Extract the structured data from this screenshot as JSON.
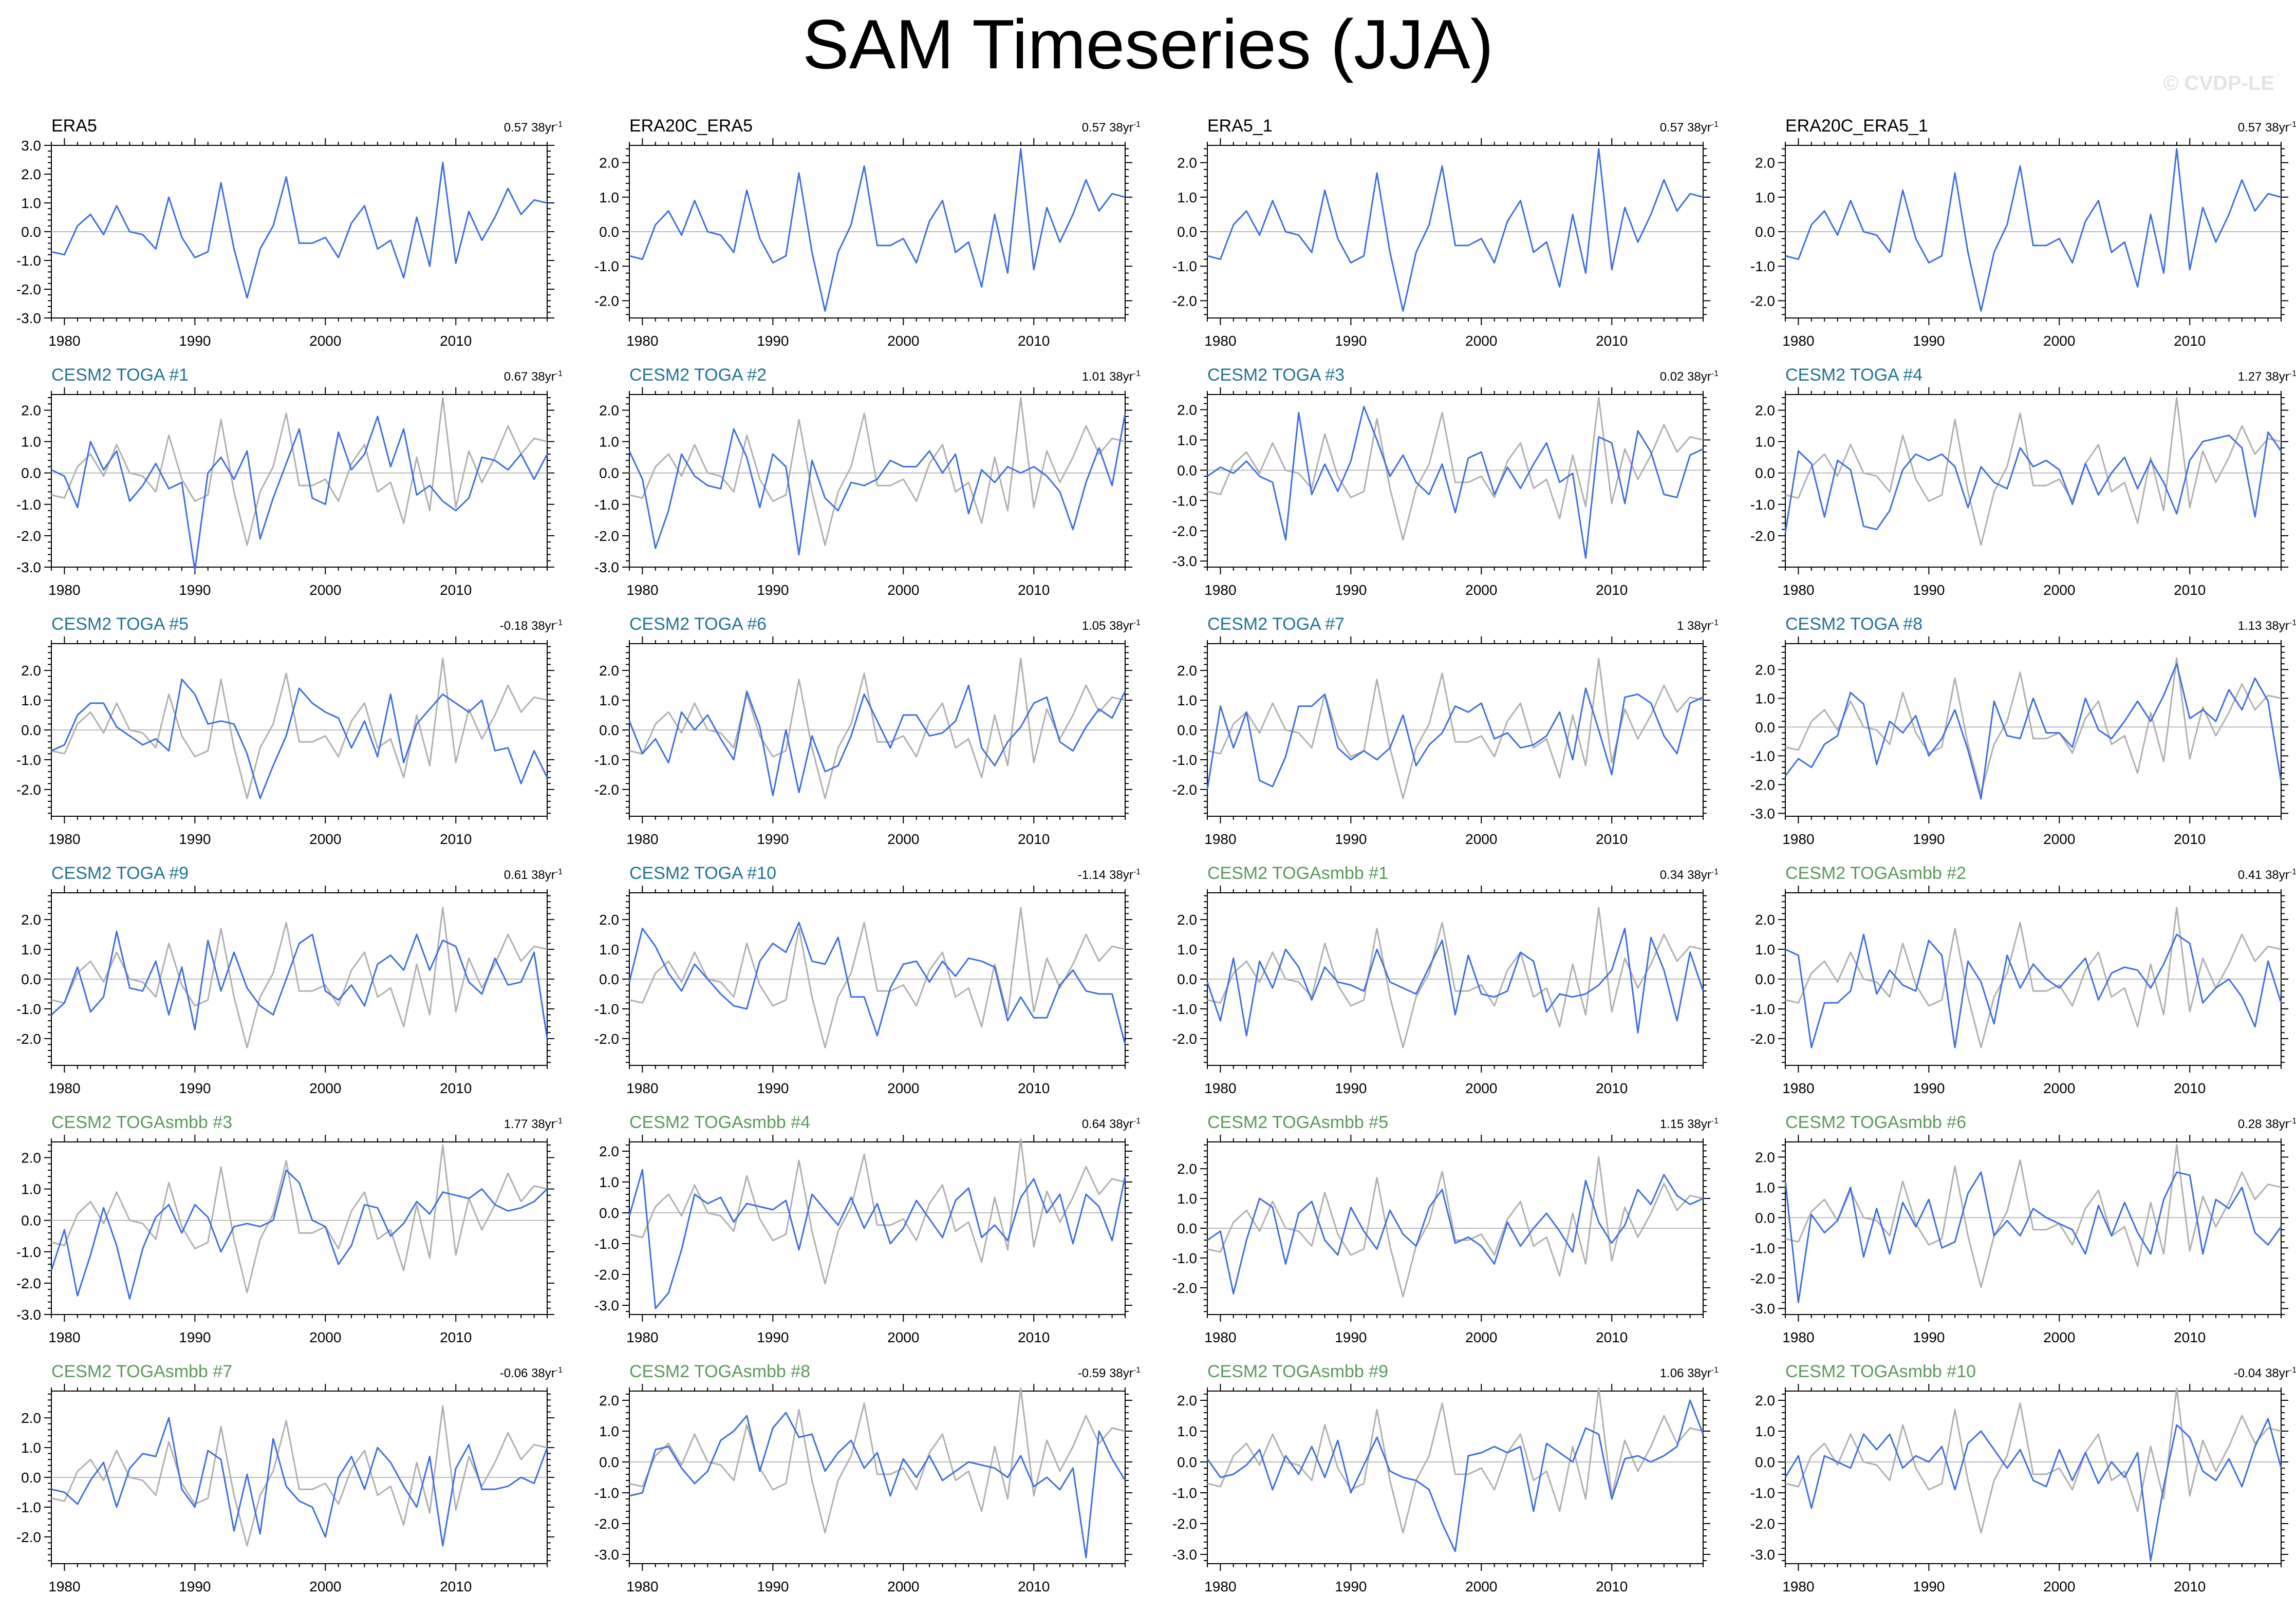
{
  "title": "SAM Timeseries (JJA)",
  "copyright": "© CVDP-LE",
  "colors": {
    "obs_line": "#b0b0b0",
    "sim_line": "#3e6fe0",
    "zero_line": "#bbbbbb",
    "obs_title": "#000000",
    "toga_title": "#1f7494",
    "smbb_title": "#5a9a5a"
  },
  "chart_data": {
    "type": "line",
    "x_start": 1979,
    "x_end": 2017,
    "x_ticks": [
      "1980",
      "1990",
      "2000",
      "2010"
    ],
    "trend_unit": "38yr",
    "trend_exponent": "-1",
    "observed_series": [
      -0.7,
      -0.8,
      0.2,
      0.6,
      -0.1,
      0.9,
      0.0,
      -0.1,
      -0.6,
      1.2,
      -0.2,
      -0.9,
      -0.7,
      1.7,
      -0.6,
      -2.3,
      -0.6,
      0.2,
      1.9,
      -0.4,
      -0.4,
      -0.2,
      -0.9,
      0.3,
      0.9,
      -0.6,
      -0.3,
      -1.6,
      0.5,
      -1.2,
      2.4,
      -1.1,
      0.7,
      -0.3,
      0.5,
      1.5,
      0.6,
      1.1,
      1.0
    ],
    "panels": [
      {
        "title": "ERA5",
        "group": "obs",
        "trend": "0.57",
        "ylim": [
          -3,
          3
        ],
        "yticks": [
          3,
          2,
          1,
          0,
          -1,
          -2,
          -3
        ],
        "sim": null
      },
      {
        "title": "ERA20C_ERA5",
        "group": "obs",
        "trend": "0.57",
        "ylim": [
          -2.5,
          2.5
        ],
        "yticks": [
          2,
          1,
          0,
          -1,
          -2
        ],
        "sim": null
      },
      {
        "title": "ERA5_1",
        "group": "obs",
        "trend": "0.57",
        "ylim": [
          -2.5,
          2.5
        ],
        "yticks": [
          2,
          1,
          0,
          -1,
          -2
        ],
        "sim": null
      },
      {
        "title": "ERA20C_ERA5_1",
        "group": "obs",
        "trend": "0.57",
        "ylim": [
          -2.5,
          2.5
        ],
        "yticks": [
          2,
          1,
          0,
          -1,
          -2
        ],
        "sim": null
      },
      {
        "title": "CESM2 TOGA #1",
        "group": "toga",
        "trend": "0.67",
        "ylim": [
          -3,
          2.5
        ],
        "yticks": [
          2,
          1,
          0,
          -1,
          -2,
          -3
        ],
        "sim": [
          0.1,
          -0.1,
          -1.1,
          1.0,
          0.1,
          0.7,
          -0.9,
          -0.4,
          0.3,
          -0.5,
          -0.3,
          -3.1,
          0.0,
          0.5,
          -0.2,
          0.7,
          -2.1,
          -0.8,
          0.3,
          1.4,
          -0.8,
          -1.0,
          1.3,
          0.1,
          0.6,
          1.8,
          0.2,
          1.4,
          -0.7,
          -0.4,
          -0.9,
          -1.2,
          -0.8,
          0.5,
          0.4,
          0.1,
          0.6,
          -0.2,
          0.6
        ]
      },
      {
        "title": "CESM2 TOGA #2",
        "group": "toga",
        "trend": "1.01",
        "ylim": [
          -3,
          2.5
        ],
        "yticks": [
          2,
          1,
          0,
          -1,
          -2,
          -3
        ],
        "sim": [
          0.7,
          -0.2,
          -2.4,
          -1.2,
          0.6,
          -0.1,
          -0.4,
          -0.5,
          1.4,
          0.5,
          -1.1,
          0.6,
          0.2,
          -2.6,
          0.4,
          -0.8,
          -1.2,
          -0.3,
          -0.4,
          -0.2,
          0.4,
          0.2,
          0.2,
          0.7,
          0.0,
          0.6,
          -1.3,
          0.1,
          -0.3,
          0.2,
          0.0,
          0.2,
          -0.1,
          -0.6,
          -1.8,
          -0.3,
          0.8,
          -0.4,
          1.9
        ]
      },
      {
        "title": "CESM2 TOGA #3",
        "group": "toga",
        "trend": "0.02",
        "ylim": [
          -3.2,
          2.5
        ],
        "yticks": [
          2,
          1,
          0,
          -1,
          -2,
          -3
        ],
        "sim": [
          -0.2,
          0.1,
          -0.1,
          0.3,
          -0.2,
          -0.4,
          -2.3,
          1.9,
          -0.8,
          0.2,
          -0.7,
          0.3,
          2.1,
          1.0,
          -0.2,
          0.5,
          -0.4,
          -0.8,
          0.2,
          -1.4,
          0.4,
          0.6,
          -0.8,
          0.1,
          -0.6,
          0.2,
          0.9,
          -0.4,
          -0.1,
          -2.9,
          1.1,
          0.9,
          -1.1,
          1.3,
          0.6,
          -0.8,
          -0.9,
          0.5,
          0.7
        ]
      },
      {
        "title": "CESM2 TOGA #4",
        "group": "toga",
        "trend": "1.27",
        "ylim": [
          -3,
          2.5
        ],
        "yticks": [
          2,
          1,
          0,
          -1,
          -2
        ],
        "sim": [
          -1.9,
          0.7,
          0.3,
          -1.4,
          0.4,
          0.1,
          -1.7,
          -1.8,
          -1.2,
          0.1,
          0.6,
          0.4,
          0.6,
          0.2,
          -1.1,
          0.2,
          -0.3,
          -0.5,
          0.8,
          0.2,
          0.4,
          0.1,
          -1.0,
          0.3,
          -0.7,
          0.0,
          0.5,
          -0.5,
          0.4,
          -0.3,
          -1.3,
          0.4,
          1.0,
          1.1,
          1.2,
          0.8,
          -1.4,
          1.3,
          0.7
        ]
      },
      {
        "title": "CESM2 TOGA #5",
        "group": "toga",
        "trend": "-0.18",
        "ylim": [
          -2.9,
          2.9
        ],
        "yticks": [
          2,
          1,
          0,
          -1,
          -2
        ],
        "sim": [
          -0.7,
          -0.5,
          0.5,
          0.9,
          0.9,
          0.1,
          -0.2,
          -0.5,
          -0.3,
          -0.7,
          1.7,
          1.2,
          0.2,
          0.3,
          0.2,
          -0.8,
          -2.3,
          -1.2,
          -0.2,
          1.4,
          0.9,
          0.6,
          0.4,
          -0.6,
          0.3,
          -0.9,
          1.2,
          -1.1,
          0.2,
          0.7,
          1.2,
          0.9,
          0.6,
          1.0,
          -0.7,
          -0.6,
          -1.8,
          -0.7,
          -1.6
        ]
      },
      {
        "title": "CESM2 TOGA #6",
        "group": "toga",
        "trend": "1.05",
        "ylim": [
          -2.9,
          2.9
        ],
        "yticks": [
          2,
          1,
          0,
          -1,
          -2
        ],
        "sim": [
          0.3,
          -0.8,
          -0.3,
          -1.1,
          0.6,
          0.0,
          0.5,
          -0.3,
          -1.0,
          1.3,
          0.1,
          -2.2,
          0.0,
          -2.1,
          -0.2,
          -1.4,
          -1.2,
          -0.2,
          1.2,
          0.3,
          -0.6,
          0.5,
          0.5,
          -0.2,
          -0.1,
          0.3,
          1.5,
          -0.6,
          -1.2,
          -0.4,
          0.1,
          0.9,
          1.1,
          -0.4,
          -0.7,
          0.1,
          0.7,
          0.4,
          1.3
        ]
      },
      {
        "title": "CESM2 TOGA #7",
        "group": "toga",
        "trend": "1",
        "ylim": [
          -2.9,
          2.9
        ],
        "yticks": [
          2,
          1,
          0,
          -1,
          -2
        ],
        "sim": [
          -2.0,
          0.8,
          -0.6,
          0.6,
          -1.7,
          -1.9,
          -0.9,
          0.8,
          0.8,
          1.2,
          -0.6,
          -1.0,
          -0.7,
          -1.0,
          -0.6,
          0.5,
          -1.2,
          -0.5,
          -0.1,
          0.8,
          0.6,
          0.9,
          -0.3,
          -0.1,
          -0.6,
          -0.5,
          -0.2,
          0.6,
          -1.0,
          1.4,
          0.0,
          -1.5,
          1.1,
          1.2,
          0.9,
          -0.2,
          -0.8,
          0.9,
          1.1
        ]
      },
      {
        "title": "CESM2 TOGA #8",
        "group": "toga",
        "trend": "1.13",
        "ylim": [
          -3.1,
          2.9
        ],
        "yticks": [
          2,
          1,
          0,
          -1,
          -2,
          -3
        ],
        "sim": [
          -1.7,
          -1.1,
          -1.4,
          -0.6,
          -0.3,
          1.2,
          0.8,
          -1.3,
          0.2,
          -0.2,
          0.4,
          -1.0,
          -0.4,
          0.6,
          -0.8,
          -2.5,
          0.9,
          -0.3,
          -0.4,
          1.0,
          -0.2,
          -0.2,
          -0.7,
          1.0,
          -0.1,
          -0.4,
          0.2,
          0.9,
          0.2,
          1.1,
          2.2,
          0.3,
          0.6,
          0.2,
          1.3,
          0.6,
          1.7,
          0.9,
          -1.9
        ]
      },
      {
        "title": "CESM2 TOGA #9",
        "group": "toga",
        "trend": "0.61",
        "ylim": [
          -2.9,
          2.9
        ],
        "yticks": [
          2,
          1,
          0,
          -1,
          -2
        ],
        "sim": [
          -1.2,
          -0.8,
          0.4,
          -1.1,
          -0.6,
          1.6,
          -0.3,
          -0.4,
          0.6,
          -1.2,
          0.4,
          -1.7,
          1.3,
          -0.4,
          0.9,
          -0.3,
          -0.9,
          -1.2,
          0.0,
          1.2,
          1.5,
          -0.4,
          -0.7,
          -0.2,
          -0.9,
          0.5,
          0.8,
          0.3,
          1.5,
          0.3,
          1.3,
          1.1,
          -0.1,
          -0.5,
          0.7,
          -0.2,
          -0.1,
          0.9,
          -2.0
        ]
      },
      {
        "title": "CESM2 TOGA #10",
        "group": "toga",
        "trend": "-1.14",
        "ylim": [
          -2.9,
          2.9
        ],
        "yticks": [
          2,
          1,
          0,
          -1,
          -2
        ],
        "sim": [
          -0.1,
          1.7,
          1.1,
          0.2,
          -0.4,
          0.5,
          0.0,
          -0.5,
          -0.9,
          -1.0,
          0.6,
          1.2,
          0.9,
          1.9,
          0.6,
          0.5,
          1.4,
          -0.6,
          -0.6,
          -1.9,
          -0.3,
          0.5,
          0.6,
          -0.1,
          0.6,
          0.1,
          0.7,
          0.6,
          0.4,
          -1.4,
          -0.6,
          -1.3,
          -1.3,
          -0.2,
          0.3,
          -0.4,
          -0.5,
          -0.5,
          -2.2
        ]
      },
      {
        "title": "CESM2 TOGAsmbb #1",
        "group": "smbb",
        "trend": "0.34",
        "ylim": [
          -2.9,
          2.9
        ],
        "yticks": [
          2,
          1,
          0,
          -1,
          -2
        ],
        "sim": [
          -0.1,
          -1.4,
          0.7,
          -1.9,
          0.6,
          -0.3,
          1.0,
          0.4,
          -0.7,
          0.4,
          -0.1,
          -0.2,
          -0.4,
          1.0,
          -0.1,
          -0.3,
          -0.5,
          0.4,
          1.3,
          -1.2,
          0.8,
          -0.5,
          -0.6,
          -0.4,
          0.9,
          0.6,
          -1.1,
          -0.5,
          -0.6,
          -0.5,
          -0.2,
          0.3,
          1.7,
          -1.8,
          1.4,
          0.3,
          -1.4,
          0.9,
          -0.4
        ]
      },
      {
        "title": "CESM2 TOGAsmbb #2",
        "group": "smbb",
        "trend": "0.41",
        "ylim": [
          -2.9,
          2.9
        ],
        "yticks": [
          2,
          1,
          0,
          -1,
          -2
        ],
        "sim": [
          1.0,
          0.8,
          -2.3,
          -0.8,
          -0.8,
          -0.4,
          1.5,
          -0.5,
          0.3,
          -0.2,
          -0.4,
          1.3,
          0.8,
          -2.3,
          0.6,
          -0.1,
          -1.5,
          0.8,
          -0.3,
          0.5,
          0.0,
          -0.3,
          0.2,
          0.7,
          -0.7,
          0.2,
          0.4,
          0.3,
          -0.3,
          0.5,
          1.5,
          1.2,
          -0.8,
          -0.3,
          0.0,
          -0.6,
          -1.6,
          0.6,
          -0.8
        ]
      },
      {
        "title": "CESM2 TOGAsmbb #3",
        "group": "smbb",
        "trend": "1.77",
        "ylim": [
          -3,
          2.5
        ],
        "yticks": [
          2,
          1,
          0,
          -1,
          -2,
          -3
        ],
        "sim": [
          -1.6,
          -0.3,
          -2.4,
          -1.1,
          0.4,
          -0.8,
          -2.5,
          -0.9,
          0.1,
          0.5,
          -0.4,
          0.5,
          0.1,
          -1.0,
          -0.2,
          -0.1,
          -0.2,
          0.0,
          1.6,
          1.2,
          0.0,
          -0.2,
          -1.4,
          -0.8,
          0.5,
          0.4,
          -0.5,
          -0.1,
          0.6,
          0.2,
          0.9,
          0.8,
          0.7,
          1.0,
          0.5,
          0.3,
          0.4,
          0.6,
          1.0
        ]
      },
      {
        "title": "CESM2 TOGAsmbb #4",
        "group": "smbb",
        "trend": "0.64",
        "ylim": [
          -3.3,
          2.3
        ],
        "yticks": [
          2,
          1,
          0,
          -1,
          -2,
          -3
        ],
        "sim": [
          -0.1,
          1.4,
          -3.1,
          -2.6,
          -1.2,
          0.6,
          0.3,
          0.5,
          -0.3,
          0.3,
          0.2,
          0.1,
          0.4,
          -1.2,
          0.6,
          0.1,
          -0.4,
          0.5,
          -0.5,
          0.3,
          -1.0,
          -0.5,
          0.4,
          -0.2,
          -0.8,
          0.4,
          0.8,
          -0.8,
          -0.4,
          -0.9,
          0.5,
          1.1,
          0.0,
          0.6,
          -1.0,
          0.6,
          0.2,
          -0.9,
          1.2
        ]
      },
      {
        "title": "CESM2 TOGAsmbb #5",
        "group": "smbb",
        "trend": "1.15",
        "ylim": [
          -2.9,
          2.9
        ],
        "yticks": [
          2,
          1,
          0,
          -1,
          -2
        ],
        "sim": [
          -0.4,
          -0.1,
          -2.2,
          -0.4,
          1.0,
          0.7,
          -1.2,
          0.5,
          0.9,
          -0.4,
          -0.9,
          0.7,
          -0.1,
          -0.7,
          0.6,
          -0.2,
          -0.6,
          0.7,
          1.3,
          -0.5,
          -0.3,
          -0.6,
          -1.2,
          0.2,
          -0.6,
          0.0,
          0.5,
          -0.1,
          -0.8,
          1.6,
          0.2,
          -0.5,
          0.1,
          1.3,
          0.8,
          1.8,
          1.1,
          0.8,
          1.0
        ]
      },
      {
        "title": "CESM2 TOGAsmbb #6",
        "group": "smbb",
        "trend": "0.28",
        "ylim": [
          -3.2,
          2.5
        ],
        "yticks": [
          2,
          1,
          0,
          -1,
          -2,
          -3
        ],
        "sim": [
          1.2,
          -2.8,
          0.1,
          -0.5,
          -0.1,
          1.0,
          -1.3,
          0.3,
          -1.2,
          0.5,
          -0.3,
          0.6,
          -1.0,
          -0.8,
          0.8,
          1.5,
          -0.6,
          -0.1,
          -0.6,
          0.3,
          0.0,
          -0.2,
          -0.4,
          -1.2,
          0.4,
          -0.6,
          0.5,
          -0.5,
          -1.2,
          0.6,
          1.5,
          1.4,
          -1.2,
          0.6,
          0.3,
          1.0,
          -0.5,
          -0.9,
          -0.3
        ]
      },
      {
        "title": "CESM2 TOGAsmbb #7",
        "group": "smbb",
        "trend": "-0.06",
        "ylim": [
          -2.9,
          2.9
        ],
        "yticks": [
          2,
          1,
          0,
          -1,
          -2
        ],
        "sim": [
          -0.4,
          -0.5,
          -0.9,
          -0.1,
          0.5,
          -1.0,
          0.3,
          0.8,
          0.7,
          2.0,
          -0.4,
          -1.0,
          0.9,
          0.6,
          -1.8,
          0.1,
          -1.9,
          1.3,
          -0.3,
          -0.8,
          -1.0,
          -2.0,
          0.0,
          0.7,
          -0.4,
          1.0,
          0.5,
          -0.3,
          -1.0,
          0.7,
          -2.3,
          0.3,
          1.1,
          -0.4,
          -0.4,
          -0.3,
          0.0,
          -0.2,
          1.0
        ]
      },
      {
        "title": "CESM2 TOGAsmbb #8",
        "group": "smbb",
        "trend": "-0.59",
        "ylim": [
          -3.3,
          2.3
        ],
        "yticks": [
          2,
          1,
          0,
          -1,
          -2,
          -3
        ],
        "sim": [
          -1.1,
          -1.0,
          0.4,
          0.5,
          -0.2,
          -0.7,
          -0.3,
          0.7,
          1.0,
          1.5,
          -0.3,
          1.1,
          1.6,
          0.8,
          0.9,
          -0.3,
          0.3,
          0.7,
          -0.2,
          0.3,
          -1.1,
          0.1,
          -0.5,
          0.2,
          -0.6,
          -0.3,
          0.0,
          -0.1,
          -0.2,
          -0.5,
          0.2,
          -0.8,
          -0.5,
          -0.9,
          -0.2,
          -3.1,
          1.0,
          0.1,
          -0.6
        ]
      },
      {
        "title": "CESM2 TOGAsmbb #9",
        "group": "smbb",
        "trend": "1.06",
        "ylim": [
          -3.3,
          2.3
        ],
        "yticks": [
          2,
          1,
          0,
          -1,
          -2,
          -3
        ],
        "sim": [
          0.1,
          -0.5,
          -0.4,
          -0.1,
          0.4,
          -0.9,
          0.2,
          -0.4,
          0.5,
          -0.5,
          0.7,
          -1.0,
          -0.1,
          0.8,
          -0.3,
          -0.5,
          -0.6,
          -0.9,
          -2.0,
          -2.9,
          0.2,
          0.3,
          0.5,
          0.3,
          0.5,
          -1.6,
          0.6,
          0.3,
          0.0,
          1.1,
          0.9,
          -1.2,
          0.1,
          0.2,
          0.0,
          0.2,
          0.5,
          2.0,
          0.9
        ]
      },
      {
        "title": "CESM2 TOGAsmbb #10",
        "group": "smbb",
        "trend": "-0.04",
        "ylim": [
          -3.3,
          2.3
        ],
        "yticks": [
          2,
          1,
          0,
          -1,
          -2,
          -3
        ],
        "sim": [
          -0.5,
          0.2,
          -1.5,
          0.2,
          0.0,
          -0.2,
          0.9,
          0.4,
          0.9,
          -0.2,
          0.2,
          0.0,
          0.5,
          -0.9,
          0.6,
          1.0,
          0.4,
          -0.2,
          0.4,
          -0.6,
          -0.8,
          0.4,
          -0.6,
          0.3,
          -0.7,
          0.0,
          -0.5,
          0.3,
          -3.2,
          -0.8,
          1.2,
          0.8,
          -0.3,
          -0.6,
          0.1,
          -0.8,
          0.5,
          1.4,
          -0.2
        ]
      }
    ]
  }
}
